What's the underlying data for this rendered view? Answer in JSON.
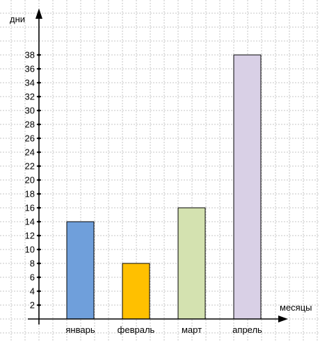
{
  "chart_data": {
    "type": "bar",
    "xlabel": "месяцы",
    "ylabel": "дни",
    "categories": [
      "январь",
      "февраль",
      "март",
      "апрель"
    ],
    "values": [
      14,
      8,
      16,
      38
    ],
    "ylim": [
      0,
      40
    ],
    "y_ticks": [
      2,
      4,
      6,
      8,
      10,
      12,
      14,
      16,
      18,
      20,
      22,
      24,
      26,
      28,
      30,
      32,
      34,
      36,
      38
    ],
    "y_tick_labels": [
      "2",
      "4",
      "6",
      "8",
      "10",
      "12",
      "14",
      "16",
      "18",
      "20",
      "22",
      "24",
      "26",
      "28",
      "30",
      "32",
      "34",
      "36",
      "38"
    ],
    "bar_colors": [
      "#6f9fdb",
      "#ffc000",
      "#d4e2b0",
      "#d9d0e6"
    ],
    "grid": true,
    "legend": "none"
  }
}
